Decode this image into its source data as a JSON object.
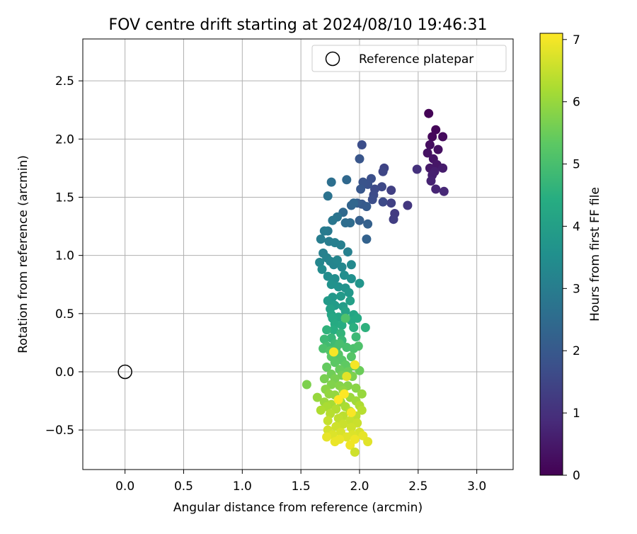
{
  "chart_data": {
    "type": "scatter",
    "title": "FOV centre drift starting at 2024/08/10 19:46:31",
    "xlabel": "Angular distance from reference (arcmin)",
    "ylabel": "Rotation from reference (arcmin)",
    "xlim": [
      -0.36,
      3.31
    ],
    "ylim": [
      -0.84,
      2.86
    ],
    "xticks": [
      0.0,
      0.5,
      1.0,
      1.5,
      2.0,
      2.5,
      3.0
    ],
    "xtick_labels": [
      "0.0",
      "0.5",
      "1.0",
      "1.5",
      "2.0",
      "2.5",
      "3.0"
    ],
    "yticks": [
      -0.5,
      0.0,
      0.5,
      1.0,
      1.5,
      2.0,
      2.5
    ],
    "ytick_labels": [
      "−0.5",
      "0.0",
      "0.5",
      "1.0",
      "1.5",
      "2.0",
      "2.5"
    ],
    "grid": true,
    "legend": {
      "position": "top-right",
      "entries": [
        "Reference platepar"
      ]
    },
    "reference_point": {
      "x": 0.0,
      "y": 0.0,
      "marker": "open-circle"
    },
    "colorbar": {
      "label": "Hours from first FF file",
      "colormap": "viridis",
      "range": [
        0,
        7.1
      ],
      "ticks": [
        0,
        1,
        2,
        3,
        4,
        5,
        6,
        7
      ],
      "tick_labels": [
        "0",
        "1",
        "2",
        "3",
        "4",
        "5",
        "6",
        "7"
      ]
    },
    "series": [
      {
        "color_by": "hours",
        "points": [
          [
            2.59,
            2.22,
            0.05
          ],
          [
            2.65,
            2.08,
            0.1
          ],
          [
            2.62,
            2.02,
            0.15
          ],
          [
            2.71,
            2.02,
            0.2
          ],
          [
            2.6,
            1.95,
            0.25
          ],
          [
            2.67,
            1.91,
            0.3
          ],
          [
            2.58,
            1.88,
            0.35
          ],
          [
            2.63,
            1.83,
            0.4
          ],
          [
            2.66,
            1.78,
            0.45
          ],
          [
            2.6,
            1.75,
            0.5
          ],
          [
            2.71,
            1.75,
            0.55
          ],
          [
            2.64,
            1.72,
            0.6
          ],
          [
            2.62,
            1.69,
            0.65
          ],
          [
            2.61,
            1.64,
            0.7
          ],
          [
            2.65,
            1.57,
            0.75
          ],
          [
            2.72,
            1.55,
            0.8
          ],
          [
            2.49,
            1.74,
            1.0
          ],
          [
            2.41,
            1.43,
            1.15
          ],
          [
            2.3,
            1.36,
            1.25
          ],
          [
            2.29,
            1.31,
            1.3
          ],
          [
            2.27,
            1.56,
            1.35
          ],
          [
            2.27,
            1.45,
            1.4
          ],
          [
            2.21,
            1.75,
            1.45
          ],
          [
            2.2,
            1.72,
            1.5
          ],
          [
            2.19,
            1.59,
            1.55
          ],
          [
            2.2,
            1.46,
            1.6
          ],
          [
            2.13,
            1.57,
            1.6
          ],
          [
            2.12,
            1.52,
            1.65
          ],
          [
            2.11,
            1.48,
            1.7
          ],
          [
            2.1,
            1.66,
            1.75
          ],
          [
            2.07,
            1.61,
            1.8
          ],
          [
            2.03,
            1.63,
            1.85
          ],
          [
            2.02,
            1.95,
            1.7
          ],
          [
            2.0,
            1.83,
            1.9
          ],
          [
            2.01,
            1.57,
            1.95
          ],
          [
            2.02,
            1.44,
            2.0
          ],
          [
            2.06,
            1.42,
            2.05
          ],
          [
            1.98,
            1.45,
            2.1
          ],
          [
            2.0,
            1.3,
            2.15
          ],
          [
            2.07,
            1.27,
            2.2
          ],
          [
            2.06,
            1.14,
            2.25
          ],
          [
            1.93,
            1.43,
            2.3
          ],
          [
            1.95,
            1.45,
            2.35
          ],
          [
            1.89,
            1.65,
            2.4
          ],
          [
            1.86,
            1.37,
            2.45
          ],
          [
            1.92,
            1.28,
            2.5
          ],
          [
            1.88,
            1.28,
            2.55
          ],
          [
            1.76,
            1.63,
            2.6
          ],
          [
            1.73,
            1.51,
            2.7
          ],
          [
            1.81,
            1.33,
            2.75
          ],
          [
            1.77,
            1.3,
            2.8
          ],
          [
            1.73,
            1.21,
            2.9
          ],
          [
            1.7,
            1.21,
            2.95
          ],
          [
            1.67,
            1.14,
            3.0
          ],
          [
            1.74,
            1.12,
            3.0
          ],
          [
            1.79,
            1.11,
            3.05
          ],
          [
            1.84,
            1.09,
            3.05
          ],
          [
            1.9,
            1.03,
            3.1
          ],
          [
            1.69,
            1.02,
            3.1
          ],
          [
            1.72,
            0.98,
            3.15
          ],
          [
            1.75,
            0.95,
            3.2
          ],
          [
            1.78,
            0.92,
            3.2
          ],
          [
            1.66,
            0.94,
            3.25
          ],
          [
            1.81,
            0.96,
            3.25
          ],
          [
            1.85,
            0.9,
            3.3
          ],
          [
            1.93,
            0.92,
            3.35
          ],
          [
            1.68,
            0.88,
            3.4
          ],
          [
            1.73,
            0.82,
            3.45
          ],
          [
            1.87,
            0.83,
            3.5
          ],
          [
            1.79,
            0.8,
            3.5
          ],
          [
            1.93,
            0.8,
            3.55
          ],
          [
            1.76,
            0.75,
            3.6
          ],
          [
            1.82,
            0.73,
            3.6
          ],
          [
            1.88,
            0.72,
            3.65
          ],
          [
            2.0,
            0.76,
            3.7
          ],
          [
            1.91,
            0.68,
            3.75
          ],
          [
            1.77,
            0.64,
            3.8
          ],
          [
            1.73,
            0.61,
            3.85
          ],
          [
            1.84,
            0.65,
            3.85
          ],
          [
            1.79,
            0.57,
            3.9
          ],
          [
            1.86,
            0.56,
            3.95
          ],
          [
            1.92,
            0.61,
            4.0
          ],
          [
            1.75,
            0.54,
            4.05
          ],
          [
            1.88,
            0.52,
            4.1
          ],
          [
            1.76,
            0.49,
            4.15
          ],
          [
            1.82,
            0.47,
            4.2
          ],
          [
            1.95,
            0.49,
            4.2
          ],
          [
            1.77,
            0.46,
            4.25
          ],
          [
            1.93,
            0.44,
            4.3
          ],
          [
            1.98,
            0.46,
            4.3
          ],
          [
            1.79,
            0.41,
            4.35
          ],
          [
            1.85,
            0.4,
            4.4
          ],
          [
            1.78,
            0.36,
            4.45
          ],
          [
            1.95,
            0.38,
            4.5
          ],
          [
            2.05,
            0.38,
            4.55
          ],
          [
            1.72,
            0.36,
            4.6
          ],
          [
            1.84,
            0.33,
            4.65
          ],
          [
            1.76,
            0.29,
            4.7
          ],
          [
            1.85,
            0.27,
            4.75
          ],
          [
            1.7,
            0.28,
            4.8
          ],
          [
            1.97,
            0.3,
            4.8
          ],
          [
            1.79,
            0.24,
            4.85
          ],
          [
            1.72,
            0.22,
            4.9
          ],
          [
            1.8,
            0.2,
            4.95
          ],
          [
            1.83,
            0.24,
            5.0
          ],
          [
            1.89,
            0.21,
            5.0
          ],
          [
            1.95,
            0.2,
            5.05
          ],
          [
            1.69,
            0.2,
            5.05
          ],
          [
            1.99,
            0.22,
            5.1
          ],
          [
            1.88,
            0.46,
            5.1
          ],
          [
            1.75,
            0.18,
            5.15
          ],
          [
            1.82,
            0.15,
            5.2
          ],
          [
            1.93,
            0.13,
            5.2
          ],
          [
            1.85,
            0.1,
            5.25
          ],
          [
            1.76,
            0.13,
            5.3
          ],
          [
            1.79,
            0.08,
            5.3
          ],
          [
            1.88,
            0.06,
            5.35
          ],
          [
            1.72,
            0.04,
            5.4
          ],
          [
            1.95,
            0.05,
            5.4
          ],
          [
            1.83,
            0.02,
            5.45
          ],
          [
            1.9,
            0.0,
            5.5
          ],
          [
            2.0,
            0.01,
            5.5
          ],
          [
            1.76,
            -0.02,
            5.55
          ],
          [
            1.85,
            -0.03,
            5.6
          ],
          [
            1.79,
            -0.06,
            5.65
          ],
          [
            1.7,
            -0.06,
            5.65
          ],
          [
            1.94,
            -0.04,
            5.7
          ],
          [
            1.55,
            -0.11,
            5.7
          ],
          [
            1.76,
            -0.11,
            5.75
          ],
          [
            1.83,
            -0.12,
            5.8
          ],
          [
            1.9,
            -0.12,
            5.8
          ],
          [
            1.71,
            -0.15,
            5.85
          ],
          [
            1.97,
            -0.14,
            5.85
          ],
          [
            1.86,
            -0.16,
            5.9
          ],
          [
            1.74,
            -0.19,
            5.95
          ],
          [
            1.79,
            -0.2,
            5.95
          ],
          [
            2.02,
            -0.19,
            6.0
          ],
          [
            1.64,
            -0.22,
            6.0
          ],
          [
            1.92,
            -0.22,
            6.05
          ],
          [
            1.7,
            -0.26,
            6.05
          ],
          [
            1.84,
            -0.26,
            6.1
          ],
          [
            1.97,
            -0.25,
            6.1
          ],
          [
            1.76,
            -0.28,
            6.15
          ],
          [
            1.72,
            -0.3,
            6.2
          ],
          [
            1.88,
            -0.3,
            6.2
          ],
          [
            2.0,
            -0.29,
            6.25
          ],
          [
            1.67,
            -0.33,
            6.25
          ],
          [
            1.8,
            -0.32,
            6.3
          ],
          [
            1.92,
            -0.34,
            6.3
          ],
          [
            2.02,
            -0.33,
            6.35
          ],
          [
            1.75,
            -0.36,
            6.35
          ],
          [
            1.86,
            -0.38,
            6.4
          ],
          [
            1.97,
            -0.38,
            6.4
          ],
          [
            1.82,
            -0.4,
            6.45
          ],
          [
            1.92,
            -0.42,
            6.5
          ],
          [
            1.73,
            -0.42,
            6.5
          ],
          [
            1.86,
            -0.45,
            6.55
          ],
          [
            1.98,
            -0.44,
            6.55
          ],
          [
            1.8,
            -0.47,
            6.6
          ],
          [
            1.93,
            -0.48,
            6.6
          ],
          [
            1.73,
            -0.5,
            6.65
          ],
          [
            1.84,
            -0.52,
            6.7
          ],
          [
            2.0,
            -0.52,
            6.7
          ],
          [
            1.77,
            -0.54,
            6.75
          ],
          [
            1.94,
            -0.54,
            6.75
          ],
          [
            1.89,
            -0.56,
            6.8
          ],
          [
            1.72,
            -0.56,
            6.85
          ],
          [
            2.03,
            -0.55,
            6.85
          ],
          [
            1.83,
            -0.58,
            6.9
          ],
          [
            1.79,
            -0.6,
            6.9
          ],
          [
            1.96,
            -0.58,
            6.95
          ],
          [
            1.92,
            -0.63,
            6.95
          ],
          [
            2.07,
            -0.6,
            6.8
          ],
          [
            1.96,
            -0.69,
            6.6
          ],
          [
            1.89,
            -0.04,
            6.8
          ],
          [
            1.96,
            0.06,
            7.0
          ],
          [
            1.78,
            0.17,
            7.05
          ],
          [
            1.93,
            -0.35,
            7.05
          ],
          [
            1.82,
            -0.24,
            7.1
          ],
          [
            1.87,
            -0.19,
            7.1
          ]
        ]
      }
    ]
  }
}
